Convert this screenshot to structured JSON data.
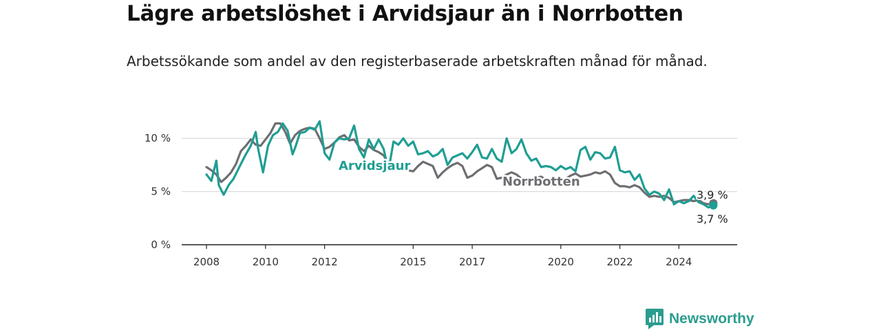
{
  "header": {
    "title": "Lägre arbetslöshet i Arvidsjaur än i Norrbotten",
    "subtitle": "Arbetssökande som andel av den registerbaserade arbetskraften månad för månad."
  },
  "brand": {
    "name": "Newsworthy",
    "icon": "newsworthy-logo-icon",
    "color": "#2a9d8f"
  },
  "chart_data": {
    "type": "line",
    "x_axis": {
      "range": [
        "2008-01",
        "2025-04"
      ],
      "tick_labels": [
        "2008",
        "2010",
        "2012",
        "2015",
        "2017",
        "2020",
        "2022",
        "2024"
      ]
    },
    "y_axis": {
      "range": [
        0,
        11.5
      ],
      "ticks": [
        0,
        5,
        10
      ],
      "tick_labels": [
        "0 %",
        "5 %",
        "10 %"
      ],
      "unit": "%"
    },
    "grid": true,
    "series": [
      {
        "name": "Arvidsjaur",
        "color": "#1f9e93",
        "end_label": "3,7 %",
        "points": [
          [
            "2008-01",
            6.6
          ],
          [
            "2008-03",
            6.0
          ],
          [
            "2008-05",
            7.9
          ],
          [
            "2008-06",
            5.6
          ],
          [
            "2008-08",
            4.7
          ],
          [
            "2008-10",
            5.6
          ],
          [
            "2008-12",
            6.2
          ],
          [
            "2009-03",
            7.6
          ],
          [
            "2009-05",
            8.5
          ],
          [
            "2009-07",
            9.3
          ],
          [
            "2009-09",
            10.6
          ],
          [
            "2009-10",
            9.0
          ],
          [
            "2009-12",
            6.8
          ],
          [
            "2010-02",
            9.3
          ],
          [
            "2010-04",
            10.3
          ],
          [
            "2010-06",
            10.6
          ],
          [
            "2010-08",
            11.4
          ],
          [
            "2010-10",
            10.7
          ],
          [
            "2010-12",
            8.5
          ],
          [
            "2011-01",
            9.1
          ],
          [
            "2011-03",
            10.5
          ],
          [
            "2011-05",
            10.6
          ],
          [
            "2011-07",
            11.0
          ],
          [
            "2011-09",
            10.8
          ],
          [
            "2011-11",
            11.6
          ],
          [
            "2012-01",
            8.6
          ],
          [
            "2012-03",
            8.0
          ],
          [
            "2012-05",
            9.6
          ],
          [
            "2012-07",
            10.0
          ],
          [
            "2012-09",
            9.9
          ],
          [
            "2012-11",
            10.0
          ],
          [
            "2013-01",
            11.2
          ],
          [
            "2013-03",
            9.0
          ],
          [
            "2013-05",
            8.2
          ],
          [
            "2013-07",
            9.9
          ],
          [
            "2013-09",
            9.0
          ],
          [
            "2013-11",
            9.9
          ],
          [
            "2014-01",
            9.0
          ],
          [
            "2014-03",
            7.0
          ],
          [
            "2014-05",
            9.7
          ],
          [
            "2014-07",
            9.4
          ],
          [
            "2014-09",
            10.0
          ],
          [
            "2014-11",
            9.3
          ],
          [
            "2015-01",
            9.7
          ],
          [
            "2015-03",
            8.5
          ],
          [
            "2015-05",
            8.6
          ],
          [
            "2015-07",
            8.8
          ],
          [
            "2015-09",
            8.3
          ],
          [
            "2015-11",
            8.5
          ],
          [
            "2016-01",
            9.0
          ],
          [
            "2016-03",
            7.5
          ],
          [
            "2016-05",
            8.2
          ],
          [
            "2016-07",
            8.4
          ],
          [
            "2016-09",
            8.6
          ],
          [
            "2016-11",
            8.1
          ],
          [
            "2017-01",
            8.7
          ],
          [
            "2017-03",
            9.4
          ],
          [
            "2017-05",
            8.2
          ],
          [
            "2017-07",
            8.1
          ],
          [
            "2017-09",
            9.0
          ],
          [
            "2017-11",
            8.1
          ],
          [
            "2018-01",
            7.8
          ],
          [
            "2018-03",
            10.0
          ],
          [
            "2018-05",
            8.6
          ],
          [
            "2018-07",
            9.0
          ],
          [
            "2018-09",
            9.9
          ],
          [
            "2018-11",
            8.6
          ],
          [
            "2019-01",
            7.9
          ],
          [
            "2019-03",
            8.1
          ],
          [
            "2019-05",
            7.3
          ],
          [
            "2019-07",
            7.4
          ],
          [
            "2019-09",
            7.3
          ],
          [
            "2019-11",
            7.0
          ],
          [
            "2020-01",
            7.4
          ],
          [
            "2020-03",
            7.1
          ],
          [
            "2020-05",
            7.3
          ],
          [
            "2020-07",
            6.9
          ],
          [
            "2020-09",
            8.9
          ],
          [
            "2020-11",
            9.2
          ],
          [
            "2021-01",
            8.0
          ],
          [
            "2021-03",
            8.7
          ],
          [
            "2021-05",
            8.6
          ],
          [
            "2021-07",
            8.1
          ],
          [
            "2021-09",
            8.2
          ],
          [
            "2021-11",
            9.2
          ],
          [
            "2022-01",
            7.0
          ],
          [
            "2022-03",
            6.8
          ],
          [
            "2022-05",
            6.9
          ],
          [
            "2022-07",
            6.1
          ],
          [
            "2022-09",
            6.6
          ],
          [
            "2022-11",
            5.3
          ],
          [
            "2023-01",
            4.7
          ],
          [
            "2023-03",
            5.0
          ],
          [
            "2023-05",
            4.8
          ],
          [
            "2023-07",
            4.2
          ],
          [
            "2023-09",
            5.2
          ],
          [
            "2023-11",
            3.8
          ],
          [
            "2024-01",
            4.1
          ],
          [
            "2024-03",
            3.9
          ],
          [
            "2024-05",
            4.1
          ],
          [
            "2024-07",
            4.6
          ],
          [
            "2024-09",
            4.0
          ],
          [
            "2024-11",
            3.8
          ],
          [
            "2025-01",
            3.5
          ],
          [
            "2025-03",
            3.7
          ]
        ]
      },
      {
        "name": "Norrbotten",
        "color": "#6e6e72",
        "end_label": "3,9 %",
        "points": [
          [
            "2008-01",
            7.3
          ],
          [
            "2008-03",
            7.0
          ],
          [
            "2008-05",
            6.6
          ],
          [
            "2008-07",
            5.9
          ],
          [
            "2008-09",
            6.3
          ],
          [
            "2008-11",
            6.8
          ],
          [
            "2009-01",
            7.6
          ],
          [
            "2009-03",
            8.8
          ],
          [
            "2009-05",
            9.3
          ],
          [
            "2009-07",
            9.9
          ],
          [
            "2009-09",
            9.4
          ],
          [
            "2009-11",
            9.3
          ],
          [
            "2010-01",
            9.9
          ],
          [
            "2010-03",
            10.5
          ],
          [
            "2010-05",
            11.4
          ],
          [
            "2010-07",
            11.4
          ],
          [
            "2010-09",
            10.6
          ],
          [
            "2010-11",
            9.5
          ],
          [
            "2011-01",
            10.3
          ],
          [
            "2011-03",
            10.7
          ],
          [
            "2011-05",
            10.9
          ],
          [
            "2011-07",
            11.0
          ],
          [
            "2011-09",
            10.9
          ],
          [
            "2011-11",
            10.0
          ],
          [
            "2012-01",
            9.0
          ],
          [
            "2012-03",
            9.2
          ],
          [
            "2012-05",
            9.6
          ],
          [
            "2012-07",
            10.1
          ],
          [
            "2012-09",
            10.3
          ],
          [
            "2012-11",
            9.8
          ],
          [
            "2013-01",
            9.9
          ],
          [
            "2013-03",
            9.2
          ],
          [
            "2013-05",
            8.8
          ],
          [
            "2013-07",
            9.3
          ],
          [
            "2013-09",
            8.9
          ],
          [
            "2013-11",
            8.7
          ],
          [
            "2014-01",
            8.4
          ],
          [
            "2014-03",
            7.6
          ],
          [
            "2014-05",
            7.3
          ],
          [
            "2014-07",
            7.5
          ],
          [
            "2014-09",
            7.2
          ],
          [
            "2014-11",
            7.0
          ],
          [
            "2015-01",
            6.9
          ],
          [
            "2015-03",
            7.4
          ],
          [
            "2015-05",
            7.8
          ],
          [
            "2015-07",
            7.6
          ],
          [
            "2015-09",
            7.4
          ],
          [
            "2015-11",
            6.3
          ],
          [
            "2016-01",
            6.8
          ],
          [
            "2016-03",
            7.2
          ],
          [
            "2016-05",
            7.5
          ],
          [
            "2016-07",
            7.7
          ],
          [
            "2016-09",
            7.4
          ],
          [
            "2016-11",
            6.3
          ],
          [
            "2017-01",
            6.5
          ],
          [
            "2017-03",
            6.9
          ],
          [
            "2017-05",
            7.2
          ],
          [
            "2017-07",
            7.5
          ],
          [
            "2017-09",
            7.3
          ],
          [
            "2017-11",
            6.2
          ],
          [
            "2018-01",
            6.3
          ],
          [
            "2018-03",
            6.6
          ],
          [
            "2018-05",
            6.8
          ],
          [
            "2018-07",
            6.6
          ],
          [
            "2018-09",
            6.2
          ],
          [
            "2018-11",
            5.8
          ],
          [
            "2019-01",
            6.0
          ],
          [
            "2019-03",
            6.3
          ],
          [
            "2019-05",
            6.4
          ],
          [
            "2019-07",
            6.1
          ],
          [
            "2019-09",
            5.6
          ],
          [
            "2019-11",
            5.8
          ],
          [
            "2020-01",
            6.0
          ],
          [
            "2020-03",
            6.2
          ],
          [
            "2020-05",
            6.5
          ],
          [
            "2020-07",
            6.7
          ],
          [
            "2020-09",
            6.4
          ],
          [
            "2020-11",
            6.5
          ],
          [
            "2021-01",
            6.6
          ],
          [
            "2021-03",
            6.8
          ],
          [
            "2021-05",
            6.7
          ],
          [
            "2021-07",
            6.9
          ],
          [
            "2021-09",
            6.6
          ],
          [
            "2021-11",
            5.8
          ],
          [
            "2022-01",
            5.5
          ],
          [
            "2022-03",
            5.5
          ],
          [
            "2022-05",
            5.4
          ],
          [
            "2022-07",
            5.6
          ],
          [
            "2022-09",
            5.4
          ],
          [
            "2022-11",
            4.9
          ],
          [
            "2023-01",
            4.5
          ],
          [
            "2023-03",
            4.6
          ],
          [
            "2023-05",
            4.5
          ],
          [
            "2023-07",
            4.6
          ],
          [
            "2023-09",
            4.4
          ],
          [
            "2023-11",
            4.0
          ],
          [
            "2024-01",
            4.1
          ],
          [
            "2024-03",
            4.2
          ],
          [
            "2024-05",
            4.2
          ],
          [
            "2024-07",
            4.1
          ],
          [
            "2024-09",
            4.2
          ],
          [
            "2024-11",
            3.9
          ],
          [
            "2025-01",
            3.8
          ],
          [
            "2025-03",
            3.9
          ]
        ]
      }
    ]
  }
}
